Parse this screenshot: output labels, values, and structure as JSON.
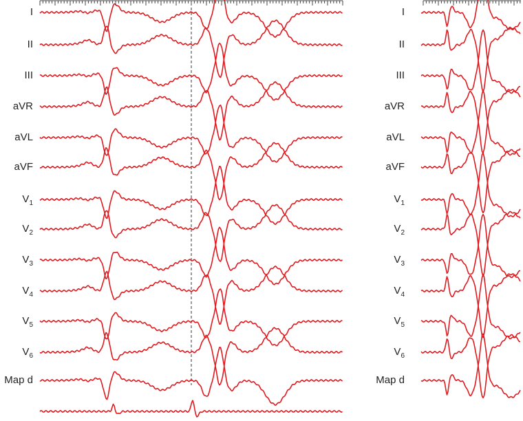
{
  "left_panel": {
    "leads": [
      {
        "text": "I"
      },
      {
        "text": "II"
      },
      {
        "text": "III"
      },
      {
        "text": "aVR"
      },
      {
        "text": "aVL"
      },
      {
        "text": "aVF"
      },
      {
        "text": "V",
        "sub": "1"
      },
      {
        "text": "V",
        "sub": "2"
      },
      {
        "text": "V",
        "sub": "3"
      },
      {
        "text": "V",
        "sub": "4"
      },
      {
        "text": "V",
        "sub": "5"
      },
      {
        "text": "V",
        "sub": "6"
      },
      {
        "text": "Map d"
      }
    ]
  },
  "right_panel": {
    "leads": [
      {
        "text": "I"
      },
      {
        "text": "II"
      },
      {
        "text": "III"
      },
      {
        "text": "aVR"
      },
      {
        "text": "aVL"
      },
      {
        "text": "aVF"
      },
      {
        "text": "V",
        "sub": "1"
      },
      {
        "text": "V",
        "sub": "2"
      },
      {
        "text": "V",
        "sub": "3"
      },
      {
        "text": "V",
        "sub": "4"
      },
      {
        "text": "V",
        "sub": "5"
      },
      {
        "text": "V",
        "sub": "6"
      },
      {
        "text": "Map d"
      }
    ]
  }
}
